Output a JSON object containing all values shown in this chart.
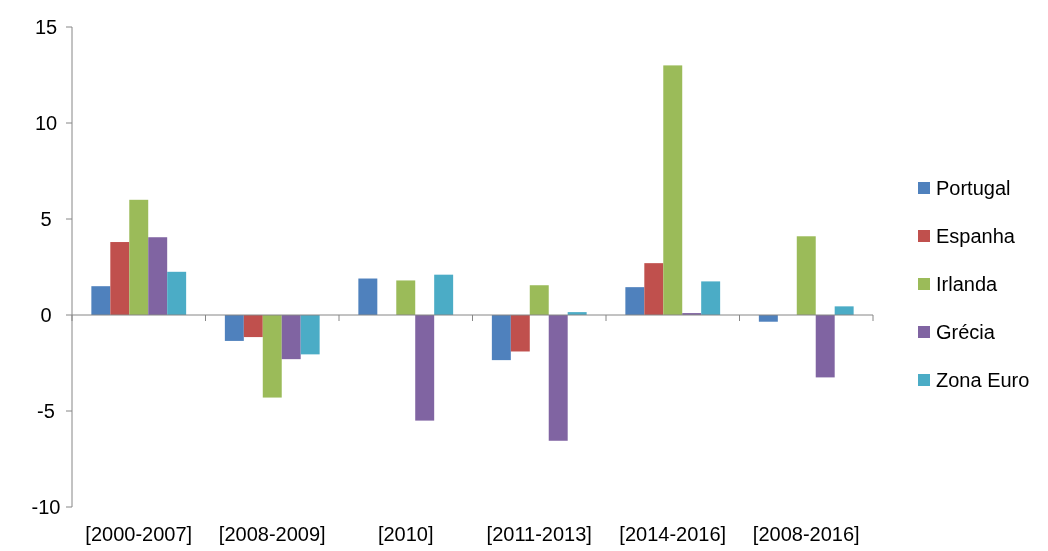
{
  "chart_data": {
    "type": "bar",
    "categories": [
      "[2000-2007]",
      "[2008-2009]",
      "[2010]",
      "[2011-2013]",
      "[2014-2016]",
      "[2008-2016]"
    ],
    "series": [
      {
        "name": "Portugal",
        "color": "#4f81bd",
        "values": [
          1.5,
          -1.35,
          1.9,
          -2.35,
          1.45,
          -0.35
        ]
      },
      {
        "name": "Espanha",
        "color": "#c0504d",
        "values": [
          3.8,
          -1.15,
          0,
          -1.9,
          2.7,
          0
        ]
      },
      {
        "name": "Irlanda",
        "color": "#9bbb59",
        "values": [
          6.0,
          -4.3,
          1.8,
          1.55,
          13.0,
          4.1
        ]
      },
      {
        "name": "Grécia",
        "color": "#8064a2",
        "values": [
          4.05,
          -2.3,
          -5.5,
          -6.55,
          0.1,
          -3.25
        ]
      },
      {
        "name": "Zona Euro",
        "color": "#4bacc6",
        "values": [
          2.25,
          -2.05,
          2.1,
          0.15,
          1.75,
          0.45
        ]
      }
    ],
    "ylim": [
      -10,
      15
    ],
    "yticks": [
      -10,
      -5,
      0,
      5,
      10,
      15
    ],
    "legend": "right"
  }
}
